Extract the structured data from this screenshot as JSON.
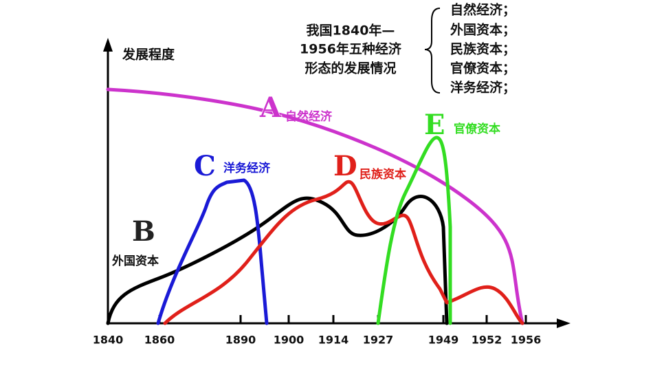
{
  "title_lines": [
    "我国1840年—",
    "1956年五种经济",
    "形态的发展情况"
  ],
  "list": [
    "自然经济；",
    "外国资本；",
    "民族资本；",
    "官僚资本；",
    "洋务经济；"
  ],
  "y_label": "发展程度",
  "x_labels": [
    "1840",
    "1860",
    "1890",
    "1900",
    "1914",
    "1927",
    "1949",
    "1952",
    "1956"
  ],
  "curves": [
    {
      "letter": "A",
      "label": "自然经济"
    },
    {
      "letter": "B",
      "label": "外国资本"
    },
    {
      "letter": "C",
      "label": "洋务经济"
    },
    {
      "letter": "D",
      "label": "民族资本"
    },
    {
      "letter": "E",
      "label": "官僚资本"
    }
  ]
}
